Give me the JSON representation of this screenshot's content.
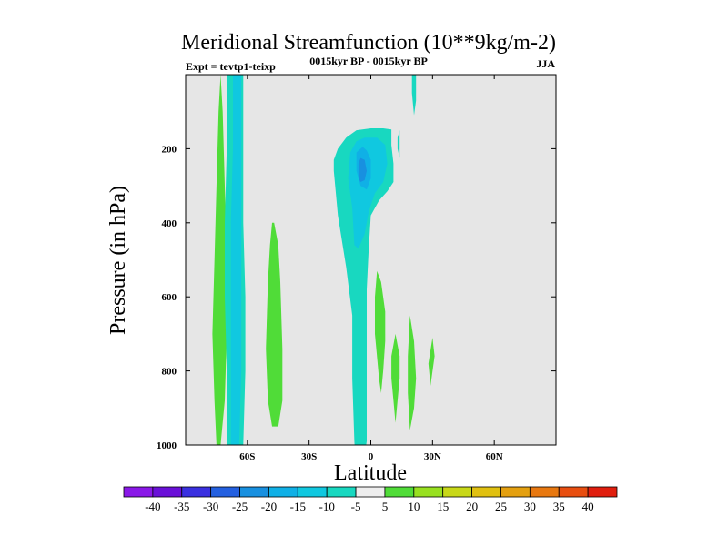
{
  "chart_data": {
    "type": "contour",
    "title": "Meridional Streamfunction (10**9kg/m-2)",
    "left_string": "Expt = tevtp1-teixp",
    "center_string": "0015kyr BP - 0015kyr BP",
    "right_string": "JJA",
    "xlabel": "Latitude",
    "ylabel": "Pressure (in hPa)",
    "xlim": [
      -90,
      90
    ],
    "ylim": [
      1000,
      0
    ],
    "x_ticks": [
      {
        "value": -60,
        "label": "60S"
      },
      {
        "value": -30,
        "label": "30S"
      },
      {
        "value": 0,
        "label": "0"
      },
      {
        "value": 30,
        "label": "30N"
      },
      {
        "value": 60,
        "label": "60N"
      }
    ],
    "y_ticks": [
      {
        "value": 200,
        "label": "200"
      },
      {
        "value": 400,
        "label": "400"
      },
      {
        "value": 600,
        "label": "600"
      },
      {
        "value": 800,
        "label": "800"
      },
      {
        "value": 1000,
        "label": "1000"
      }
    ],
    "background_color": "#e6e6e6",
    "legend": {
      "labels": [
        "-40",
        "-35",
        "-30",
        "-25",
        "-20",
        "-15",
        "-10",
        "-5",
        "5",
        "10",
        "15",
        "20",
        "25",
        "30",
        "35",
        "40"
      ],
      "colors": [
        "#8a18e8",
        "#6a10d8",
        "#3a30e0",
        "#2460e0",
        "#1890e0",
        "#10b0e6",
        "#10c8e0",
        "#18d8c0",
        "#eeeeee",
        "#50dc38",
        "#98e020",
        "#c8d818",
        "#e0c010",
        "#e4a010",
        "#e87810",
        "#e84e10",
        "#e01e0e"
      ]
    },
    "regions": [
      {
        "name": "sh-positive-band",
        "level": 5,
        "color": "#50dc38",
        "points": [
          [
            -75,
            1000
          ],
          [
            -76,
            880
          ],
          [
            -77,
            700
          ],
          [
            -76,
            500
          ],
          [
            -75,
            300
          ],
          [
            -74,
            100
          ],
          [
            -73,
            0
          ],
          [
            -72,
            100
          ],
          [
            -71,
            300
          ],
          [
            -70,
            500
          ],
          [
            -70,
            700
          ],
          [
            -71,
            880
          ],
          [
            -73,
            1000
          ]
        ]
      },
      {
        "name": "sh-negative-band",
        "level": -5,
        "color": "#18d8c0",
        "points": [
          [
            -70,
            1000
          ],
          [
            -70,
            800
          ],
          [
            -71,
            600
          ],
          [
            -71,
            400
          ],
          [
            -70,
            200
          ],
          [
            -70,
            0
          ],
          [
            -62,
            0
          ],
          [
            -62,
            200
          ],
          [
            -62,
            400
          ],
          [
            -61,
            600
          ],
          [
            -61,
            800
          ],
          [
            -62,
            1000
          ],
          [
            -64,
            1060
          ]
        ]
      },
      {
        "name": "sh-negative-core",
        "level": -10,
        "color": "#10c8e0",
        "points": [
          [
            -68,
            1000
          ],
          [
            -68,
            800
          ],
          [
            -68,
            600
          ],
          [
            -68,
            400
          ],
          [
            -67,
            200
          ],
          [
            -67,
            0
          ],
          [
            -63,
            0
          ],
          [
            -63,
            200
          ],
          [
            -63,
            400
          ],
          [
            -63,
            600
          ],
          [
            -63,
            800
          ],
          [
            -64,
            1000
          ]
        ]
      },
      {
        "name": "sh-positive-lobe",
        "level": 5,
        "color": "#50dc38",
        "points": [
          [
            -50,
            880
          ],
          [
            -51,
            740
          ],
          [
            -50,
            560
          ],
          [
            -49,
            460
          ],
          [
            -48,
            400
          ],
          [
            -47,
            400
          ],
          [
            -45,
            460
          ],
          [
            -44,
            560
          ],
          [
            -43,
            740
          ],
          [
            -43,
            880
          ],
          [
            -45,
            950
          ],
          [
            -48,
            950
          ]
        ]
      },
      {
        "name": "tropical-negative-cell",
        "level": -5,
        "color": "#18d8c0",
        "points": [
          [
            -7,
            1080
          ],
          [
            -8,
            990
          ],
          [
            -9,
            820
          ],
          [
            -9,
            650
          ],
          [
            -12,
            520
          ],
          [
            -16,
            380
          ],
          [
            -18,
            260
          ],
          [
            -18,
            230
          ],
          [
            -16,
            200
          ],
          [
            -12,
            170
          ],
          [
            -7,
            150
          ],
          [
            0,
            145
          ],
          [
            6,
            145
          ],
          [
            10,
            148
          ],
          [
            10,
            190
          ],
          [
            11,
            240
          ],
          [
            11,
            290
          ],
          [
            8,
            315
          ],
          [
            4,
            340
          ],
          [
            0,
            380
          ],
          [
            -1,
            470
          ],
          [
            -2,
            580
          ],
          [
            -2,
            700
          ],
          [
            -2,
            840
          ],
          [
            -2,
            990
          ],
          [
            -4,
            1060
          ]
        ]
      },
      {
        "name": "tropical-negative-core",
        "level": -10,
        "color": "#10c8e0",
        "points": [
          [
            -8,
            460
          ],
          [
            -9,
            360
          ],
          [
            -11,
            280
          ],
          [
            -10,
            210
          ],
          [
            -7,
            180
          ],
          [
            -3,
            170
          ],
          [
            3,
            170
          ],
          [
            7,
            190
          ],
          [
            8,
            240
          ],
          [
            6,
            290
          ],
          [
            2,
            320
          ],
          [
            -1,
            370
          ],
          [
            -3,
            430
          ],
          [
            -6,
            470
          ]
        ]
      },
      {
        "name": "tropical-negative-inner",
        "level": -15,
        "color": "#10b0e6",
        "points": [
          [
            -7,
            260
          ],
          [
            -7,
            210
          ],
          [
            -4,
            195
          ],
          [
            -2,
            205
          ],
          [
            0,
            230
          ],
          [
            0,
            280
          ],
          [
            -2,
            310
          ],
          [
            -5,
            300
          ]
        ]
      },
      {
        "name": "tropical-negative-center",
        "level": -20,
        "color": "#1890e0",
        "points": [
          [
            -6,
            280
          ],
          [
            -6,
            240
          ],
          [
            -5,
            225
          ],
          [
            -3,
            230
          ],
          [
            -2,
            260
          ],
          [
            -3,
            285
          ],
          [
            -5,
            290
          ]
        ]
      },
      {
        "name": "nh-negative-sliver",
        "level": -5,
        "color": "#18d8c0",
        "points": [
          [
            13,
            200
          ],
          [
            13,
            170
          ],
          [
            14,
            150
          ],
          [
            14,
            200
          ],
          [
            14,
            225
          ]
        ]
      },
      {
        "name": "nh-positive-tongue-1",
        "level": 5,
        "color": "#50dc38",
        "points": [
          [
            4,
            820
          ],
          [
            2,
            700
          ],
          [
            2,
            600
          ],
          [
            3,
            530
          ],
          [
            5,
            560
          ],
          [
            7,
            640
          ],
          [
            7,
            720
          ],
          [
            6,
            800
          ],
          [
            5,
            860
          ]
        ]
      },
      {
        "name": "nh-positive-tongue-2",
        "level": 5,
        "color": "#50dc38",
        "points": [
          [
            12,
            940
          ],
          [
            11,
            880
          ],
          [
            10,
            820
          ],
          [
            10,
            760
          ],
          [
            12,
            700
          ],
          [
            14,
            760
          ],
          [
            14,
            820
          ],
          [
            13,
            880
          ]
        ]
      },
      {
        "name": "nh-positive-tongue-3",
        "level": 5,
        "color": "#50dc38",
        "points": [
          [
            19,
            960
          ],
          [
            18,
            860
          ],
          [
            18,
            760
          ],
          [
            19,
            650
          ],
          [
            21,
            720
          ],
          [
            22,
            820
          ],
          [
            21,
            900
          ]
        ]
      },
      {
        "name": "nh-positive-diamond",
        "level": 5,
        "color": "#50dc38",
        "points": [
          [
            28,
            780
          ],
          [
            30,
            710
          ],
          [
            31,
            760
          ],
          [
            29,
            840
          ]
        ]
      },
      {
        "name": "nh-negative-top",
        "level": -5,
        "color": "#18d8c0",
        "points": [
          [
            21,
            110
          ],
          [
            20,
            50
          ],
          [
            20,
            0
          ],
          [
            22,
            0
          ],
          [
            22,
            70
          ]
        ]
      }
    ]
  }
}
